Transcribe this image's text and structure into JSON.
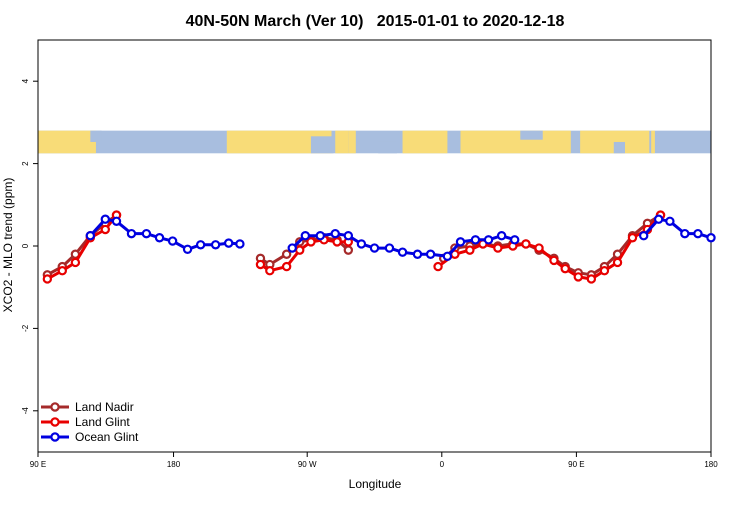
{
  "chart_data": {
    "type": "line",
    "title": "40N-50N March (Ver 10)   2015-01-01 to 2020-12-18",
    "xlabel": "Longitude",
    "ylabel": "XCO2 - MLO trend (ppm)",
    "xlim": [
      90,
      450
    ],
    "ylim": [
      -5,
      5
    ],
    "x_ticks": [
      {
        "value": 90,
        "label": "90 E"
      },
      {
        "value": 162.5,
        "label": "180"
      },
      {
        "value": 234,
        "label": "90 W"
      },
      {
        "value": 306,
        "label": "0"
      },
      {
        "value": 378,
        "label": "90 E"
      },
      {
        "value": 450,
        "label": "180"
      }
    ],
    "y_ticks": [
      {
        "value": -4,
        "label": "-4"
      },
      {
        "value": -2,
        "label": "-2"
      },
      {
        "value": 0,
        "label": "0"
      },
      {
        "value": 2,
        "label": "2"
      },
      {
        "value": 4,
        "label": "4"
      }
    ],
    "map_band": {
      "y_range": [
        2.25,
        2.8
      ],
      "ocean_color": "#a8bedf",
      "land_color": "#f8dc78"
    },
    "legend": {
      "position": "bottom-left"
    },
    "series": [
      {
        "name": "Land Nadir",
        "color": "#a52a2a",
        "segments": [
          [
            [
              95,
              -0.7
            ],
            [
              103,
              -0.5
            ],
            [
              110,
              -0.2
            ],
            [
              118,
              0.25
            ],
            [
              126,
              0.55
            ],
            [
              132,
              0.75
            ]
          ],
          [
            [
              209,
              -0.3
            ],
            [
              214,
              -0.45
            ],
            [
              223,
              -0.2
            ],
            [
              230,
              0.1
            ],
            [
              236,
              0.15
            ],
            [
              243,
              0.2
            ],
            [
              250,
              0.15
            ],
            [
              256,
              -0.1
            ]
          ],
          [
            [
              307,
              -0.3
            ],
            [
              313,
              -0.05
            ],
            [
              321,
              0.0
            ],
            [
              328,
              0.05
            ],
            [
              336,
              0.0
            ],
            [
              344,
              0.05
            ],
            [
              351,
              0.05
            ],
            [
              358,
              -0.1
            ],
            [
              366,
              -0.3
            ],
            [
              372,
              -0.5
            ],
            [
              379,
              -0.65
            ],
            [
              386,
              -0.7
            ],
            [
              393,
              -0.5
            ],
            [
              400,
              -0.2
            ],
            [
              408,
              0.25
            ],
            [
              416,
              0.55
            ],
            [
              423,
              0.75
            ]
          ]
        ]
      },
      {
        "name": "Land Glint",
        "color": "#e80000",
        "segments": [
          [
            [
              95,
              -0.8
            ],
            [
              103,
              -0.6
            ],
            [
              110,
              -0.4
            ],
            [
              118,
              0.2
            ],
            [
              126,
              0.4
            ],
            [
              132,
              0.75
            ]
          ],
          [
            [
              209,
              -0.45
            ],
            [
              214,
              -0.6
            ],
            [
              223,
              -0.5
            ],
            [
              230,
              -0.1
            ],
            [
              236,
              0.1
            ],
            [
              243,
              0.15
            ],
            [
              250,
              0.1
            ],
            [
              256,
              0.1
            ]
          ],
          [
            [
              304,
              -0.5
            ],
            [
              313,
              -0.2
            ],
            [
              321,
              -0.1
            ],
            [
              328,
              0.05
            ],
            [
              336,
              -0.05
            ],
            [
              344,
              0.0
            ],
            [
              351,
              0.05
            ],
            [
              358,
              -0.05
            ],
            [
              366,
              -0.35
            ],
            [
              372,
              -0.55
            ],
            [
              379,
              -0.75
            ],
            [
              386,
              -0.8
            ],
            [
              393,
              -0.6
            ],
            [
              400,
              -0.4
            ],
            [
              408,
              0.2
            ],
            [
              416,
              0.4
            ],
            [
              423,
              0.75
            ]
          ]
        ]
      },
      {
        "name": "Ocean Glint",
        "color": "#0000e0",
        "segments": [
          [
            [
              118,
              0.25
            ],
            [
              126,
              0.65
            ],
            [
              132,
              0.6
            ],
            [
              140,
              0.3
            ],
            [
              148,
              0.3
            ],
            [
              155,
              0.2
            ],
            [
              162,
              0.12
            ],
            [
              170,
              -0.08
            ],
            [
              177,
              0.03
            ],
            [
              185,
              0.03
            ],
            [
              192,
              0.07
            ],
            [
              198,
              0.05
            ]
          ],
          [
            [
              226,
              -0.05
            ],
            [
              233,
              0.25
            ],
            [
              241,
              0.25
            ],
            [
              249,
              0.3
            ],
            [
              256,
              0.25
            ],
            [
              263,
              0.05
            ],
            [
              270,
              -0.05
            ],
            [
              278,
              -0.05
            ],
            [
              285,
              -0.15
            ],
            [
              293,
              -0.2
            ],
            [
              300,
              -0.2
            ],
            [
              309,
              -0.25
            ],
            [
              316,
              0.1
            ],
            [
              324,
              0.15
            ],
            [
              331,
              0.15
            ],
            [
              338,
              0.25
            ],
            [
              345,
              0.15
            ]
          ],
          [
            [
              414,
              0.25
            ],
            [
              422,
              0.65
            ],
            [
              428,
              0.6
            ],
            [
              436,
              0.3
            ],
            [
              443,
              0.3
            ],
            [
              450,
              0.2
            ]
          ]
        ]
      }
    ]
  }
}
